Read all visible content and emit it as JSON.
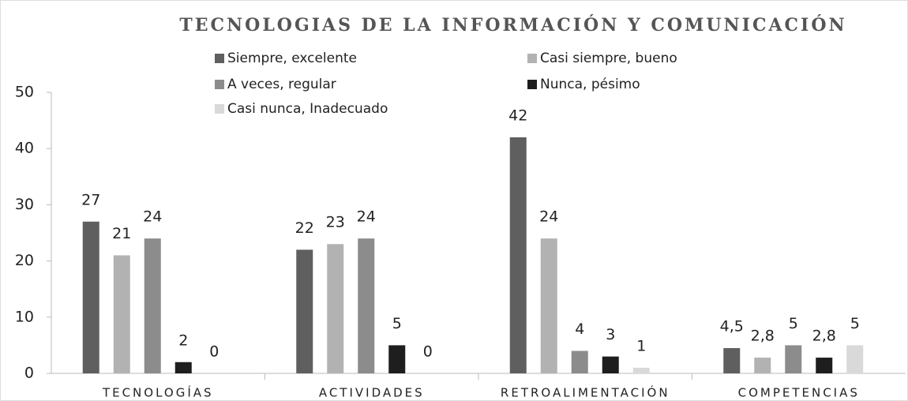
{
  "chart_data": {
    "type": "bar",
    "title": "TECNOLOGIAS DE LA INFORMACIÓN Y COMUNICACIÓN",
    "categories": [
      "TECNOLOGÍAS",
      "ACTIVIDADES",
      "RETROALIMENTACIÓN",
      "COMPETENCIAS"
    ],
    "series": [
      {
        "name": "Siempre, excelente",
        "color": "#5f5f5f",
        "values": [
          27,
          22,
          42,
          4.5
        ],
        "value_labels": [
          "27",
          "22",
          "42",
          "4,5"
        ]
      },
      {
        "name": "Casi siempre, bueno",
        "color": "#b2b2b2",
        "values": [
          21,
          23,
          24,
          2.8
        ],
        "value_labels": [
          "21",
          "23",
          "24",
          "2,8"
        ]
      },
      {
        "name": "A veces, regular",
        "color": "#8c8c8c",
        "values": [
          24,
          24,
          4,
          5
        ]
      },
      {
        "name": "Nunca, pésimo",
        "color": "#1e1e1e",
        "values": [
          2,
          5,
          3,
          2.8
        ],
        "value_labels": [
          "2",
          "5",
          "3",
          "2,8"
        ]
      },
      {
        "name": "Casi nunca, Inadecuado",
        "color": "#d9d9d9",
        "values": [
          0,
          0,
          1,
          5
        ]
      }
    ],
    "ylim": [
      0,
      50
    ],
    "yticks": [
      0,
      10,
      20,
      30,
      40,
      50
    ]
  }
}
